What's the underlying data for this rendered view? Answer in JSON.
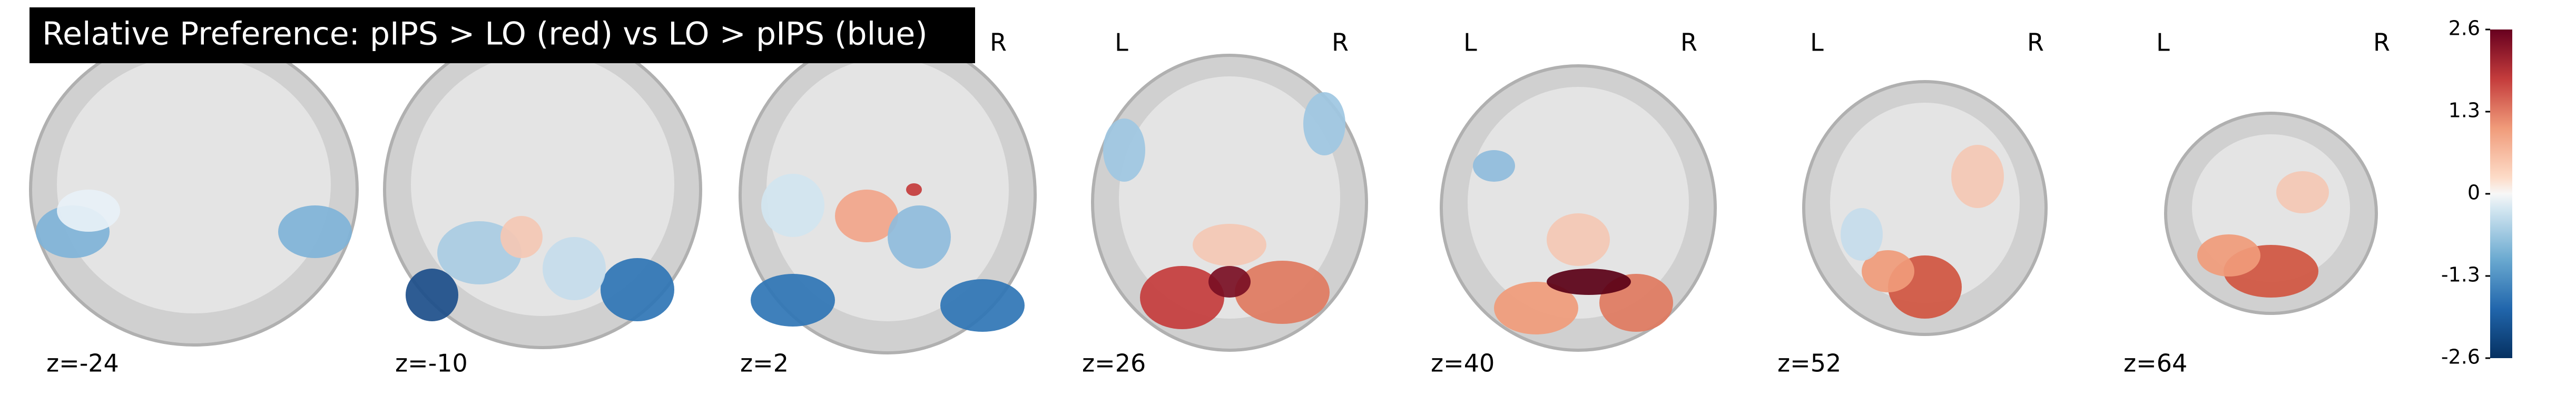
{
  "title": "Relative Preference: pIPS > LO (red) vs LO > pIPS (blue)",
  "orientation": {
    "left": "L",
    "right": "R"
  },
  "slices": [
    {
      "label": "z=-24"
    },
    {
      "label": "z=-10"
    },
    {
      "label": "z=2"
    },
    {
      "label": "z=26"
    },
    {
      "label": "z=40"
    },
    {
      "label": "z=52"
    },
    {
      "label": "z=64"
    }
  ],
  "colorbar": {
    "lim": [
      -2.6,
      2.6
    ],
    "ticks": [
      2.6,
      1.3,
      0,
      -1.3,
      -2.6
    ]
  }
}
